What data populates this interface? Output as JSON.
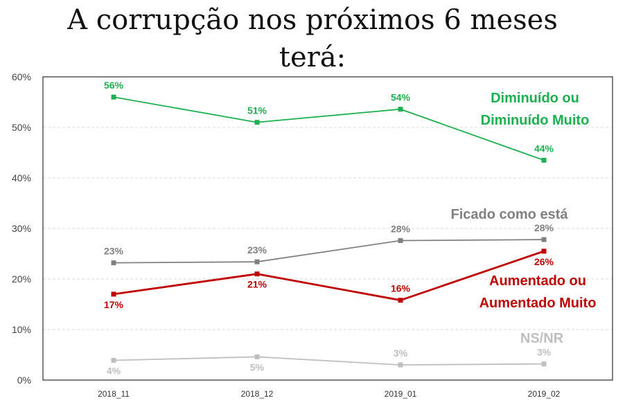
{
  "chart_data": {
    "type": "line",
    "title_lines": [
      "A corrupção nos próximos 6 meses",
      "terá:"
    ],
    "categories": [
      "2018_11",
      "2018_12",
      "2019_01",
      "2019_02"
    ],
    "ylim": [
      0,
      60
    ],
    "yticks": [
      "0%",
      "10%",
      "20%",
      "30%",
      "40%",
      "50%",
      "60%"
    ],
    "ytick_values": [
      0,
      10,
      20,
      30,
      40,
      50,
      60
    ],
    "grid": true,
    "series": [
      {
        "name_lines": [
          "Diminuído ou",
          "Diminuído Muito"
        ],
        "color": "#1db050",
        "values": [
          56,
          51,
          53.6,
          43.5
        ],
        "labels": [
          "56%",
          "51%",
          "54%",
          "44%"
        ],
        "label_pos": [
          "above",
          "above",
          "above",
          "above"
        ],
        "stroke": 1.8
      },
      {
        "name_lines": [
          "Ficado como está"
        ],
        "color": "#808080",
        "values": [
          23.2,
          23.4,
          27.6,
          27.8
        ],
        "labels": [
          "23%",
          "23%",
          "28%",
          "28%"
        ],
        "label_pos": [
          "above",
          "above",
          "above",
          "above"
        ],
        "stroke": 1.8
      },
      {
        "name_lines": [
          "Aumentado ou",
          "Aumentado Muito"
        ],
        "color": "#c00000",
        "values": [
          17,
          21,
          15.8,
          25.5
        ],
        "labels": [
          "17%",
          "21%",
          "16%",
          "26%"
        ],
        "label_pos": [
          "below",
          "below",
          "above",
          "below"
        ],
        "stroke": 2.8
      },
      {
        "name_lines": [
          "NS/NR"
        ],
        "color": "#bfbfbf",
        "values": [
          3.9,
          4.6,
          3.0,
          3.2
        ],
        "labels": [
          "4%",
          "5%",
          "3%",
          "3%"
        ],
        "label_pos": [
          "below",
          "below",
          "above",
          "above"
        ],
        "stroke": 1.8
      }
    ]
  }
}
